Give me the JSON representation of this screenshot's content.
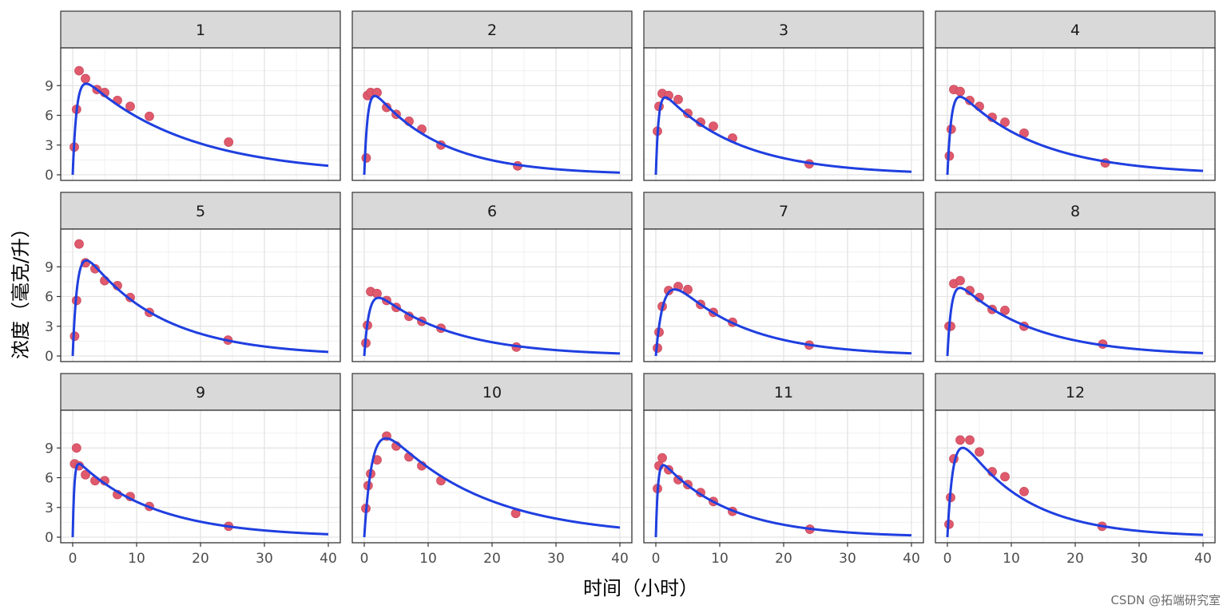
{
  "chart_data": {
    "type": "scatter",
    "xlabel": "时间（小时）",
    "ylabel": "浓度（毫克/升）",
    "xlim": [
      0,
      40
    ],
    "ylim": [
      0,
      12
    ],
    "xticks": [
      0,
      10,
      20,
      30,
      40
    ],
    "yticks": [
      0,
      3,
      6,
      9
    ],
    "grid": true,
    "legend": "none",
    "colors": {
      "points": "#e05a6d",
      "curve": "#1f3fe0",
      "strip": "#d9d9d9"
    },
    "panels": [
      {
        "label": "1",
        "points": [
          [
            0.25,
            2.8
          ],
          [
            0.6,
            6.6
          ],
          [
            1.0,
            10.5
          ],
          [
            2.0,
            9.7
          ],
          [
            3.8,
            8.6
          ],
          [
            5.0,
            8.3
          ],
          [
            7.0,
            7.5
          ],
          [
            9.0,
            6.9
          ],
          [
            12.0,
            5.9
          ],
          [
            24.4,
            3.3
          ]
        ],
        "curve": {
          "ka": 1.6,
          "ke": 0.062,
          "A": 10.9
        }
      },
      {
        "label": "2",
        "points": [
          [
            0.3,
            1.7
          ],
          [
            0.5,
            8.0
          ],
          [
            1.0,
            8.3
          ],
          [
            2.0,
            8.3
          ],
          [
            3.5,
            6.8
          ],
          [
            5.0,
            6.1
          ],
          [
            7.0,
            5.4
          ],
          [
            9.0,
            4.6
          ],
          [
            12.0,
            3.0
          ],
          [
            24.0,
            0.9
          ]
        ],
        "curve": {
          "ka": 1.9,
          "ke": 0.095,
          "A": 9.8
        }
      },
      {
        "label": "3",
        "points": [
          [
            0.25,
            4.4
          ],
          [
            0.5,
            6.9
          ],
          [
            1.0,
            8.2
          ],
          [
            2.0,
            8.0
          ],
          [
            3.5,
            7.6
          ],
          [
            5.0,
            6.2
          ],
          [
            7.0,
            5.3
          ],
          [
            9.0,
            4.9
          ],
          [
            12.0,
            3.7
          ],
          [
            24.0,
            1.1
          ]
        ],
        "curve": {
          "ka": 2.3,
          "ke": 0.085,
          "A": 9.2
        }
      },
      {
        "label": "4",
        "points": [
          [
            0.3,
            1.9
          ],
          [
            0.6,
            4.6
          ],
          [
            1.0,
            8.6
          ],
          [
            2.0,
            8.4
          ],
          [
            3.5,
            7.5
          ],
          [
            5.0,
            6.9
          ],
          [
            7.0,
            5.8
          ],
          [
            9.0,
            5.3
          ],
          [
            12.0,
            4.2
          ],
          [
            24.7,
            1.2
          ]
        ],
        "curve": {
          "ka": 1.6,
          "ke": 0.08,
          "A": 9.7
        }
      },
      {
        "label": "5",
        "points": [
          [
            0.3,
            2.0
          ],
          [
            0.6,
            5.6
          ],
          [
            1.0,
            11.3
          ],
          [
            2.0,
            9.4
          ],
          [
            3.5,
            8.8
          ],
          [
            5.0,
            7.6
          ],
          [
            7.0,
            7.1
          ],
          [
            9.0,
            5.9
          ],
          [
            12.0,
            4.4
          ],
          [
            24.3,
            1.6
          ]
        ],
        "curve": {
          "ka": 1.4,
          "ke": 0.085,
          "A": 12.3
        }
      },
      {
        "label": "6",
        "points": [
          [
            0.25,
            1.3
          ],
          [
            0.5,
            3.1
          ],
          [
            1.0,
            6.5
          ],
          [
            2.0,
            6.3
          ],
          [
            3.5,
            5.6
          ],
          [
            5.0,
            4.9
          ],
          [
            7.0,
            4.0
          ],
          [
            9.0,
            3.5
          ],
          [
            12.0,
            2.8
          ],
          [
            23.8,
            0.9
          ]
        ],
        "curve": {
          "ka": 1.3,
          "ke": 0.085,
          "A": 7.6
        }
      },
      {
        "label": "7",
        "points": [
          [
            0.25,
            0.8
          ],
          [
            0.5,
            2.4
          ],
          [
            1.0,
            5.0
          ],
          [
            2.0,
            6.6
          ],
          [
            3.5,
            7.0
          ],
          [
            5.0,
            6.7
          ],
          [
            7.0,
            5.2
          ],
          [
            9.0,
            4.4
          ],
          [
            12.0,
            3.4
          ],
          [
            24.0,
            1.1
          ]
        ],
        "curve": {
          "ka": 0.85,
          "ke": 0.09,
          "A": 9.8
        }
      },
      {
        "label": "8",
        "points": [
          [
            0.25,
            3.0
          ],
          [
            0.5,
            3.0
          ],
          [
            1.0,
            7.3
          ],
          [
            2.0,
            7.6
          ],
          [
            3.5,
            6.6
          ],
          [
            5.0,
            5.9
          ],
          [
            7.0,
            4.7
          ],
          [
            9.0,
            4.6
          ],
          [
            12.0,
            3.0
          ],
          [
            24.3,
            1.2
          ]
        ],
        "curve": {
          "ka": 1.55,
          "ke": 0.085,
          "A": 8.6
        }
      },
      {
        "label": "9",
        "points": [
          [
            0.3,
            7.4
          ],
          [
            0.6,
            9.0
          ],
          [
            1.0,
            7.2
          ],
          [
            2.0,
            6.3
          ],
          [
            3.5,
            5.7
          ],
          [
            5.0,
            5.7
          ],
          [
            7.0,
            4.3
          ],
          [
            9.0,
            4.1
          ],
          [
            12.0,
            3.1
          ],
          [
            24.4,
            1.1
          ]
        ],
        "curve": {
          "ka": 4.0,
          "ke": 0.083,
          "A": 8.2
        }
      },
      {
        "label": "10",
        "points": [
          [
            0.25,
            2.9
          ],
          [
            0.6,
            5.2
          ],
          [
            1.0,
            6.4
          ],
          [
            2.0,
            7.8
          ],
          [
            3.5,
            10.2
          ],
          [
            5.0,
            9.2
          ],
          [
            7.0,
            8.1
          ],
          [
            9.0,
            7.2
          ],
          [
            12.0,
            5.7
          ],
          [
            23.7,
            2.4
          ]
        ],
        "curve": {
          "ka": 0.8,
          "ke": 0.066,
          "A": 13.6
        }
      },
      {
        "label": "11",
        "points": [
          [
            0.25,
            4.9
          ],
          [
            0.5,
            7.2
          ],
          [
            1.0,
            8.0
          ],
          [
            2.0,
            6.8
          ],
          [
            3.5,
            5.8
          ],
          [
            5.0,
            5.3
          ],
          [
            7.0,
            4.5
          ],
          [
            9.0,
            3.6
          ],
          [
            12.0,
            2.6
          ],
          [
            24.1,
            0.8
          ]
        ],
        "curve": {
          "ka": 3.0,
          "ke": 0.095,
          "A": 8.4
        }
      },
      {
        "label": "12",
        "points": [
          [
            0.25,
            1.3
          ],
          [
            0.5,
            4.0
          ],
          [
            1.0,
            7.9
          ],
          [
            2.0,
            9.8
          ],
          [
            3.5,
            9.8
          ],
          [
            5.0,
            8.6
          ],
          [
            7.0,
            6.6
          ],
          [
            9.0,
            6.1
          ],
          [
            12.0,
            4.6
          ],
          [
            24.2,
            1.1
          ]
        ],
        "curve": {
          "ka": 1.1,
          "ke": 0.1,
          "A": 12.6
        }
      }
    ]
  },
  "watermark": "CSDN @拓端研究室"
}
